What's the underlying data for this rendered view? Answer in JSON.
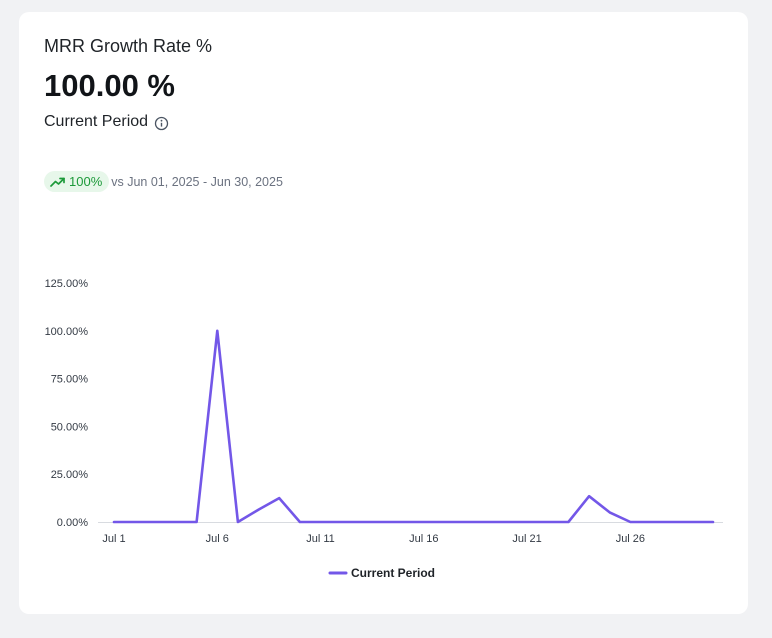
{
  "card": {
    "title": "MRR Growth Rate %",
    "value": "100.00 %",
    "period_label": "Current Period",
    "trend_badge": "100%",
    "compare_text": "vs Jun 01, 2025 - Jun 30, 2025",
    "icons": {
      "info": "info-icon",
      "trend": "trending-up-icon"
    }
  },
  "colors": {
    "series": "#7357e8",
    "badge_bg": "#e7f7ea",
    "badge_text": "#1d9a3a"
  },
  "chart_data": {
    "type": "line",
    "xlabel": "",
    "ylabel": "",
    "x": [
      "Jul 1",
      "Jul 2",
      "Jul 3",
      "Jul 4",
      "Jul 5",
      "Jul 6",
      "Jul 7",
      "Jul 8",
      "Jul 9",
      "Jul 10",
      "Jul 11",
      "Jul 12",
      "Jul 13",
      "Jul 14",
      "Jul 15",
      "Jul 16",
      "Jul 17",
      "Jul 18",
      "Jul 19",
      "Jul 20",
      "Jul 21",
      "Jul 22",
      "Jul 23",
      "Jul 24",
      "Jul 25",
      "Jul 26",
      "Jul 27",
      "Jul 28",
      "Jul 29",
      "Jul 30"
    ],
    "x_ticks": [
      "Jul 1",
      "Jul 6",
      "Jul 11",
      "Jul 16",
      "Jul 21",
      "Jul 26"
    ],
    "y_ticks": [
      "0.00%",
      "25.00%",
      "50.00%",
      "75.00%",
      "100.00%",
      "125.00%"
    ],
    "ylim": [
      0,
      125
    ],
    "series": [
      {
        "name": "Current Period",
        "values": [
          0,
          0,
          0,
          0,
          0,
          100,
          0,
          6.5,
          12.5,
          0,
          0,
          0,
          0,
          0,
          0,
          0,
          0,
          0,
          0,
          0,
          0,
          0,
          0,
          13.5,
          5,
          0,
          0,
          0,
          0,
          0
        ]
      }
    ],
    "legend_position": "bottom",
    "grid": false
  }
}
